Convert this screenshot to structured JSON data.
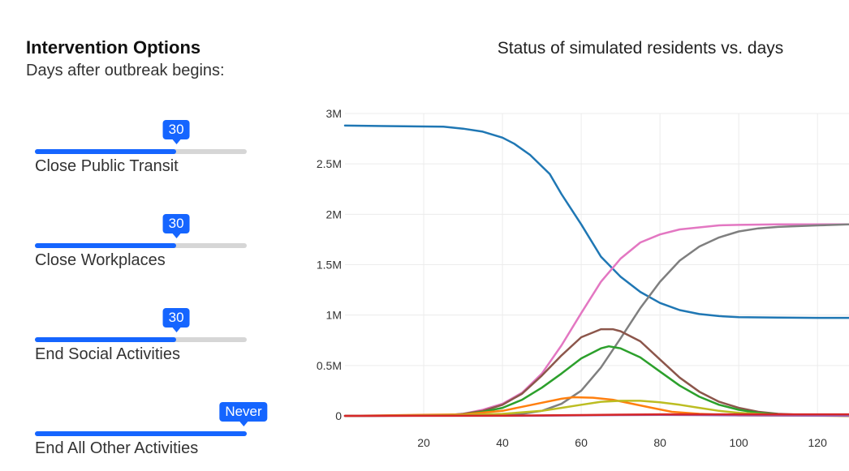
{
  "panel": {
    "title": "Intervention Options",
    "subtitle": "Days after outbreak begins:"
  },
  "sliders": [
    {
      "label": "Close Public Transit",
      "value": "30",
      "fraction": 0.667
    },
    {
      "label": "Close Workplaces",
      "value": "30",
      "fraction": 0.667
    },
    {
      "label": "End Social Activities",
      "value": "30",
      "fraction": 0.667
    },
    {
      "label": "End All Other Activities",
      "value": "Never",
      "fraction": 1.0
    }
  ],
  "colors": {
    "accent": "#1565ff",
    "track": "#d6d6d6"
  },
  "chart_data": {
    "type": "line",
    "title": "Status of simulated residents vs. days",
    "xlabel": "",
    "ylabel": "",
    "xlim": [
      0,
      128
    ],
    "ylim": [
      0,
      3000000
    ],
    "xticks": [
      20,
      40,
      60,
      80,
      100,
      120
    ],
    "yticks": [
      0,
      500000,
      1000000,
      1500000,
      2000000,
      2500000,
      3000000
    ],
    "ytick_labels": [
      "0",
      "0.5M",
      "1M",
      "1.5M",
      "2M",
      "2.5M",
      "3M"
    ],
    "grid": true,
    "legend": "none",
    "series": [
      {
        "color": "#1f77b4",
        "points": [
          [
            0,
            2880000
          ],
          [
            10,
            2875000
          ],
          [
            25,
            2870000
          ],
          [
            30,
            2850000
          ],
          [
            35,
            2820000
          ],
          [
            40,
            2760000
          ],
          [
            43,
            2700000
          ],
          [
            47,
            2590000
          ],
          [
            52,
            2400000
          ],
          [
            55,
            2200000
          ],
          [
            60,
            1900000
          ],
          [
            65,
            1580000
          ],
          [
            70,
            1380000
          ],
          [
            75,
            1230000
          ],
          [
            80,
            1120000
          ],
          [
            85,
            1050000
          ],
          [
            90,
            1010000
          ],
          [
            95,
            990000
          ],
          [
            100,
            980000
          ],
          [
            110,
            975000
          ],
          [
            120,
            972000
          ],
          [
            128,
            972000
          ]
        ]
      },
      {
        "color": "#e377c2",
        "points": [
          [
            0,
            0
          ],
          [
            25,
            5000
          ],
          [
            30,
            20000
          ],
          [
            35,
            60000
          ],
          [
            40,
            120000
          ],
          [
            45,
            230000
          ],
          [
            50,
            420000
          ],
          [
            55,
            700000
          ],
          [
            60,
            1020000
          ],
          [
            65,
            1330000
          ],
          [
            70,
            1560000
          ],
          [
            75,
            1720000
          ],
          [
            80,
            1800000
          ],
          [
            85,
            1850000
          ],
          [
            90,
            1870000
          ],
          [
            95,
            1890000
          ],
          [
            100,
            1895000
          ],
          [
            110,
            1900000
          ],
          [
            128,
            1900000
          ]
        ]
      },
      {
        "color": "#7f7f7f",
        "points": [
          [
            0,
            0
          ],
          [
            40,
            5000
          ],
          [
            45,
            20000
          ],
          [
            50,
            50000
          ],
          [
            55,
            120000
          ],
          [
            60,
            250000
          ],
          [
            65,
            480000
          ],
          [
            70,
            770000
          ],
          [
            75,
            1070000
          ],
          [
            80,
            1330000
          ],
          [
            85,
            1540000
          ],
          [
            90,
            1680000
          ],
          [
            95,
            1770000
          ],
          [
            100,
            1830000
          ],
          [
            105,
            1860000
          ],
          [
            110,
            1875000
          ],
          [
            120,
            1890000
          ],
          [
            128,
            1900000
          ]
        ]
      },
      {
        "color": "#8c564b",
        "points": [
          [
            0,
            0
          ],
          [
            25,
            5000
          ],
          [
            30,
            20000
          ],
          [
            35,
            50000
          ],
          [
            40,
            110000
          ],
          [
            45,
            220000
          ],
          [
            50,
            400000
          ],
          [
            55,
            600000
          ],
          [
            60,
            780000
          ],
          [
            65,
            860000
          ],
          [
            68,
            860000
          ],
          [
            70,
            840000
          ],
          [
            75,
            740000
          ],
          [
            80,
            560000
          ],
          [
            85,
            380000
          ],
          [
            90,
            240000
          ],
          [
            95,
            140000
          ],
          [
            100,
            80000
          ],
          [
            105,
            40000
          ],
          [
            110,
            20000
          ],
          [
            120,
            5000
          ],
          [
            128,
            0
          ]
        ]
      },
      {
        "color": "#2ca02c",
        "points": [
          [
            0,
            0
          ],
          [
            25,
            5000
          ],
          [
            30,
            15000
          ],
          [
            35,
            40000
          ],
          [
            40,
            80000
          ],
          [
            45,
            160000
          ],
          [
            50,
            280000
          ],
          [
            55,
            420000
          ],
          [
            60,
            570000
          ],
          [
            65,
            670000
          ],
          [
            67,
            690000
          ],
          [
            70,
            670000
          ],
          [
            75,
            580000
          ],
          [
            80,
            440000
          ],
          [
            85,
            300000
          ],
          [
            90,
            190000
          ],
          [
            95,
            110000
          ],
          [
            100,
            60000
          ],
          [
            105,
            30000
          ],
          [
            110,
            15000
          ],
          [
            120,
            3000
          ],
          [
            128,
            0
          ]
        ]
      },
      {
        "color": "#ff7f0e",
        "points": [
          [
            0,
            0
          ],
          [
            30,
            15000
          ],
          [
            40,
            50000
          ],
          [
            45,
            90000
          ],
          [
            50,
            130000
          ],
          [
            55,
            170000
          ],
          [
            58,
            185000
          ],
          [
            63,
            180000
          ],
          [
            68,
            160000
          ],
          [
            73,
            120000
          ],
          [
            78,
            80000
          ],
          [
            83,
            40000
          ],
          [
            90,
            20000
          ],
          [
            100,
            5000
          ],
          [
            128,
            0
          ]
        ]
      },
      {
        "color": "#bcbd22",
        "points": [
          [
            0,
            0
          ],
          [
            20,
            5000
          ],
          [
            30,
            10000
          ],
          [
            40,
            20000
          ],
          [
            50,
            50000
          ],
          [
            55,
            80000
          ],
          [
            60,
            110000
          ],
          [
            65,
            140000
          ],
          [
            70,
            150000
          ],
          [
            75,
            150000
          ],
          [
            80,
            135000
          ],
          [
            85,
            110000
          ],
          [
            90,
            80000
          ],
          [
            95,
            50000
          ],
          [
            100,
            30000
          ],
          [
            110,
            10000
          ],
          [
            128,
            2000
          ]
        ]
      },
      {
        "color": "#9467bd",
        "points": [
          [
            0,
            0
          ],
          [
            50,
            2000
          ],
          [
            60,
            5000
          ],
          [
            70,
            8000
          ],
          [
            80,
            10000
          ],
          [
            90,
            8000
          ],
          [
            100,
            5000
          ],
          [
            128,
            2000
          ]
        ]
      },
      {
        "color": "#d62728",
        "points": [
          [
            0,
            0
          ],
          [
            40,
            2000
          ],
          [
            50,
            5000
          ],
          [
            60,
            8000
          ],
          [
            70,
            12000
          ],
          [
            80,
            15000
          ],
          [
            90,
            15000
          ],
          [
            100,
            15000
          ],
          [
            128,
            15000
          ]
        ]
      }
    ]
  }
}
